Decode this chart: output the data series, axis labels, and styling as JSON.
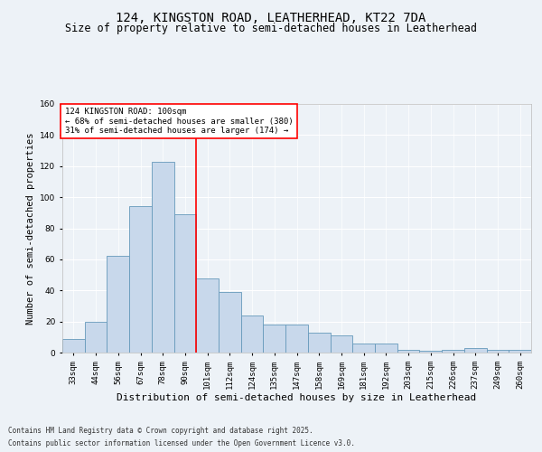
{
  "title": "124, KINGSTON ROAD, LEATHERHEAD, KT22 7DA",
  "subtitle": "Size of property relative to semi-detached houses in Leatherhead",
  "xlabel": "Distribution of semi-detached houses by size in Leatherhead",
  "ylabel": "Number of semi-detached properties",
  "categories": [
    "33sqm",
    "44sqm",
    "56sqm",
    "67sqm",
    "78sqm",
    "90sqm",
    "101sqm",
    "112sqm",
    "124sqm",
    "135sqm",
    "147sqm",
    "158sqm",
    "169sqm",
    "181sqm",
    "192sqm",
    "203sqm",
    "215sqm",
    "226sqm",
    "237sqm",
    "249sqm",
    "260sqm"
  ],
  "values": [
    9,
    20,
    62,
    94,
    123,
    89,
    48,
    39,
    24,
    18,
    18,
    13,
    11,
    6,
    6,
    2,
    1,
    2,
    3,
    2,
    2
  ],
  "bar_color": "#c8d8eb",
  "bar_edge_color": "#6699bb",
  "vline_x": 5.5,
  "vline_color": "red",
  "annotation_title": "124 KINGSTON ROAD: 100sqm",
  "annotation_line2": "← 68% of semi-detached houses are smaller (380)",
  "annotation_line3": "31% of semi-detached houses are larger (174) →",
  "annotation_box_color": "white",
  "annotation_box_edge": "red",
  "ylim": [
    0,
    160
  ],
  "yticks": [
    0,
    20,
    40,
    60,
    80,
    100,
    120,
    140,
    160
  ],
  "bg_color": "#edf2f7",
  "footer_line1": "Contains HM Land Registry data © Crown copyright and database right 2025.",
  "footer_line2": "Contains public sector information licensed under the Open Government Licence v3.0.",
  "title_fontsize": 10,
  "subtitle_fontsize": 8.5,
  "xlabel_fontsize": 8,
  "ylabel_fontsize": 7.5,
  "tick_fontsize": 6.5,
  "annot_fontsize": 6.5,
  "footer_fontsize": 5.5
}
